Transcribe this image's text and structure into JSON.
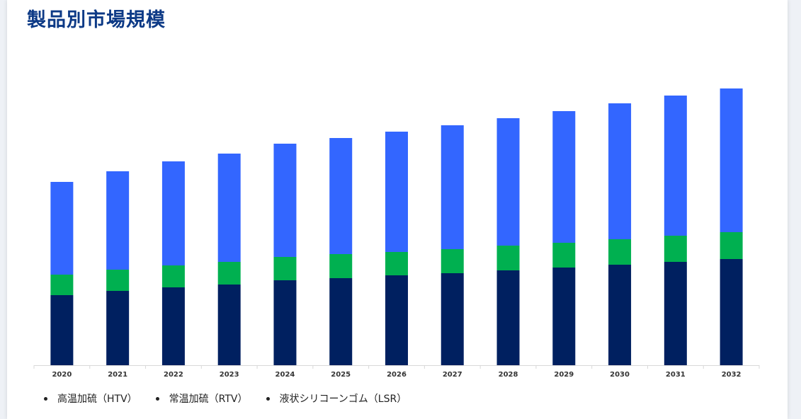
{
  "title": "製品別市場規模",
  "chart_data": {
    "type": "bar",
    "stacked": true,
    "title": "製品別市場規模",
    "xlabel": "",
    "ylabel": "",
    "categories": [
      "2020",
      "2021",
      "2022",
      "2023",
      "2024",
      "2025",
      "2026",
      "2027",
      "2028",
      "2029",
      "2030",
      "2031",
      "2032"
    ],
    "series": [
      {
        "name": "高温加硫（HTV）",
        "color": "#002060",
        "values": [
          99,
          105,
          110,
          114,
          120,
          123,
          127,
          130,
          134,
          138,
          142,
          146,
          150
        ]
      },
      {
        "name": "常温加硫（RTV）",
        "color": "#00b050",
        "values": [
          29,
          30,
          31,
          32,
          33,
          34,
          33,
          34,
          35,
          35,
          36,
          37,
          38
        ]
      },
      {
        "name": "液状シリコーンゴム（LSR）",
        "color": "#3366ff",
        "values": [
          131,
          139,
          147,
          153,
          160,
          164,
          170,
          175,
          180,
          186,
          192,
          198,
          203
        ]
      }
    ],
    "ylim": [
      0,
      400
    ],
    "grid": false,
    "legend_position": "bottom-left"
  }
}
